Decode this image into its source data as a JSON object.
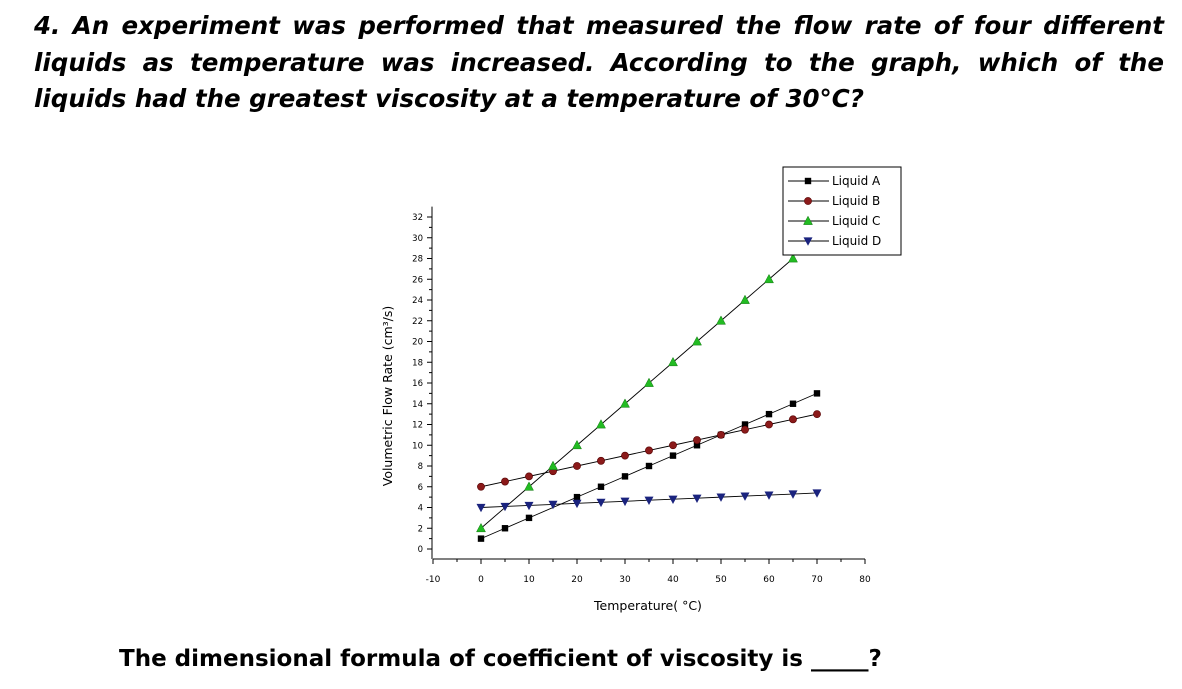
{
  "question": {
    "text": "4. An experiment was performed that measured the flow rate of four different liquids as temperature was increased. According to the graph, which of the liquids had the greatest viscosity at a temperature of 30°C?"
  },
  "footer": {
    "text": "The dimensional formula of coefficient of viscosity is _____?"
  },
  "chart_data": {
    "type": "line",
    "title": "",
    "xlabel": "Temperature( °C)",
    "ylabel": "Volumetric Flow Rate (cm³/s)",
    "xlim": [
      -10,
      80
    ],
    "ylim": [
      -1,
      33
    ],
    "x_ticks": [
      -10,
      0,
      10,
      20,
      30,
      40,
      50,
      60,
      70,
      80
    ],
    "y_ticks": [
      0,
      2,
      4,
      6,
      8,
      10,
      12,
      14,
      16,
      18,
      20,
      22,
      24,
      26,
      28,
      30,
      32
    ],
    "grid": false,
    "legend_position": "top-right",
    "series": [
      {
        "name": "Liquid A",
        "marker": "square",
        "color": "#000000",
        "x": [
          0,
          5,
          10,
          20,
          25,
          30,
          35,
          40,
          45,
          50,
          55,
          60,
          65,
          70
        ],
        "y": [
          1,
          2,
          3,
          5,
          6,
          7,
          8,
          9,
          10,
          11,
          12,
          13,
          14,
          15
        ]
      },
      {
        "name": "Liquid B",
        "marker": "circle",
        "color": "#8b1a1a",
        "x": [
          0,
          5,
          10,
          15,
          20,
          25,
          30,
          35,
          40,
          45,
          50,
          55,
          60,
          65,
          70
        ],
        "y": [
          6,
          6.5,
          7,
          7.5,
          8,
          8.5,
          9,
          9.5,
          10,
          10.5,
          11,
          11.5,
          12,
          12.5,
          13
        ]
      },
      {
        "name": "Liquid C",
        "marker": "triangle-up",
        "color": "#22bb22",
        "x": [
          0,
          10,
          15,
          20,
          25,
          30,
          35,
          40,
          45,
          50,
          55,
          60,
          65
        ],
        "y": [
          2,
          6,
          8,
          10,
          12,
          14,
          16,
          18,
          20,
          22,
          24,
          26,
          28
        ]
      },
      {
        "name": "Liquid D",
        "marker": "triangle-down",
        "color": "#1a237e",
        "x": [
          0,
          5,
          10,
          15,
          20,
          25,
          30,
          35,
          40,
          45,
          50,
          55,
          60,
          65,
          70
        ],
        "y": [
          4,
          4.1,
          4.2,
          4.3,
          4.4,
          4.5,
          4.6,
          4.7,
          4.8,
          4.9,
          5.0,
          5.1,
          5.2,
          5.3,
          5.4
        ]
      }
    ]
  }
}
